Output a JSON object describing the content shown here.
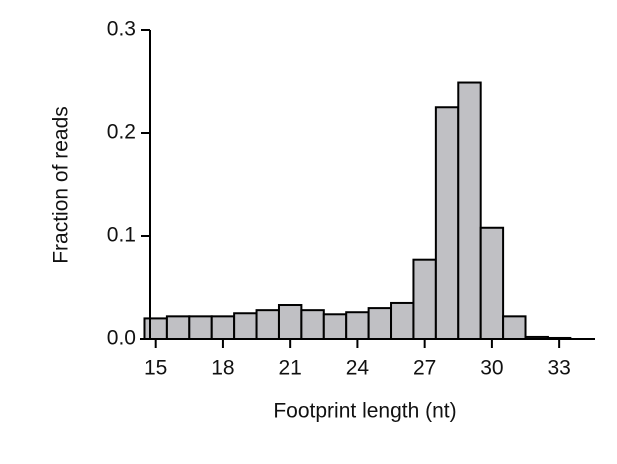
{
  "chart_data": {
    "type": "bar",
    "x_label": "Footprint length (nt)",
    "y_label": "Fraction of reads",
    "x": [
      15,
      16,
      17,
      18,
      19,
      20,
      21,
      22,
      23,
      24,
      25,
      26,
      27,
      28,
      29,
      30,
      31,
      32,
      33
    ],
    "values": [
      0.02,
      0.022,
      0.022,
      0.022,
      0.025,
      0.028,
      0.033,
      0.028,
      0.024,
      0.026,
      0.03,
      0.035,
      0.077,
      0.225,
      0.249,
      0.108,
      0.022,
      0.002,
      0.001
    ],
    "color": "#c0c0c4",
    "xlim": [
      14.3,
      34.6
    ],
    "xticks": [
      15,
      18,
      21,
      24,
      27,
      30,
      33
    ],
    "ylim": [
      0,
      0.3
    ],
    "yticks": [
      {
        "value": 0,
        "label": "0.0"
      },
      0.1,
      0.2,
      0.3
    ],
    "grid": false
  }
}
